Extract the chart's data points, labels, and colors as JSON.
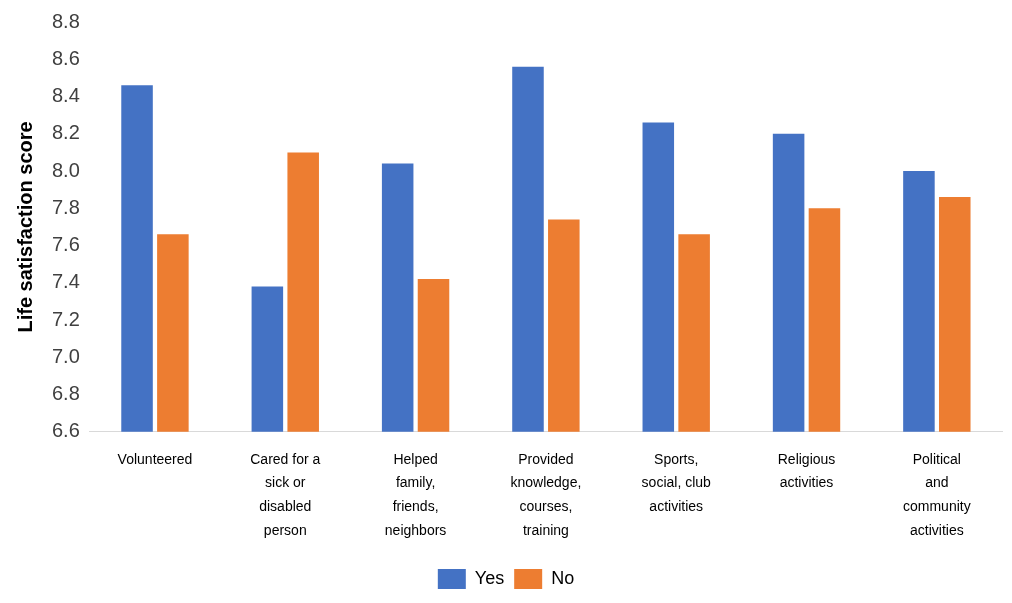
{
  "chart_data": {
    "type": "bar",
    "ylabel": "Life satisfaction score",
    "categories": [
      "Volunteered",
      "Cared for a sick or disabled person",
      "Helped family, friends, neighbors",
      "Provided knowledge, courses, training",
      "Sports, social, club activities",
      "Religious activities",
      "Political and community activities"
    ],
    "series": [
      {
        "name": "Yes",
        "color": "#4472c4",
        "values": [
          8.46,
          7.38,
          8.04,
          8.56,
          8.26,
          8.2,
          8.0
        ]
      },
      {
        "name": "No",
        "color": "#ed7d31",
        "values": [
          7.66,
          8.1,
          7.42,
          7.74,
          7.66,
          7.8,
          7.86
        ]
      }
    ],
    "ylim": [
      6.6,
      8.8
    ],
    "yticks": [
      6.6,
      6.8,
      {
        "value": 7,
        "label": "7.0"
      },
      7.2,
      7.4,
      7.6,
      7.8,
      {
        "value": 8,
        "label": "8.0"
      },
      8.2,
      8.4,
      8.6,
      8.8
    ],
    "grid": false,
    "legend": "bottom"
  }
}
